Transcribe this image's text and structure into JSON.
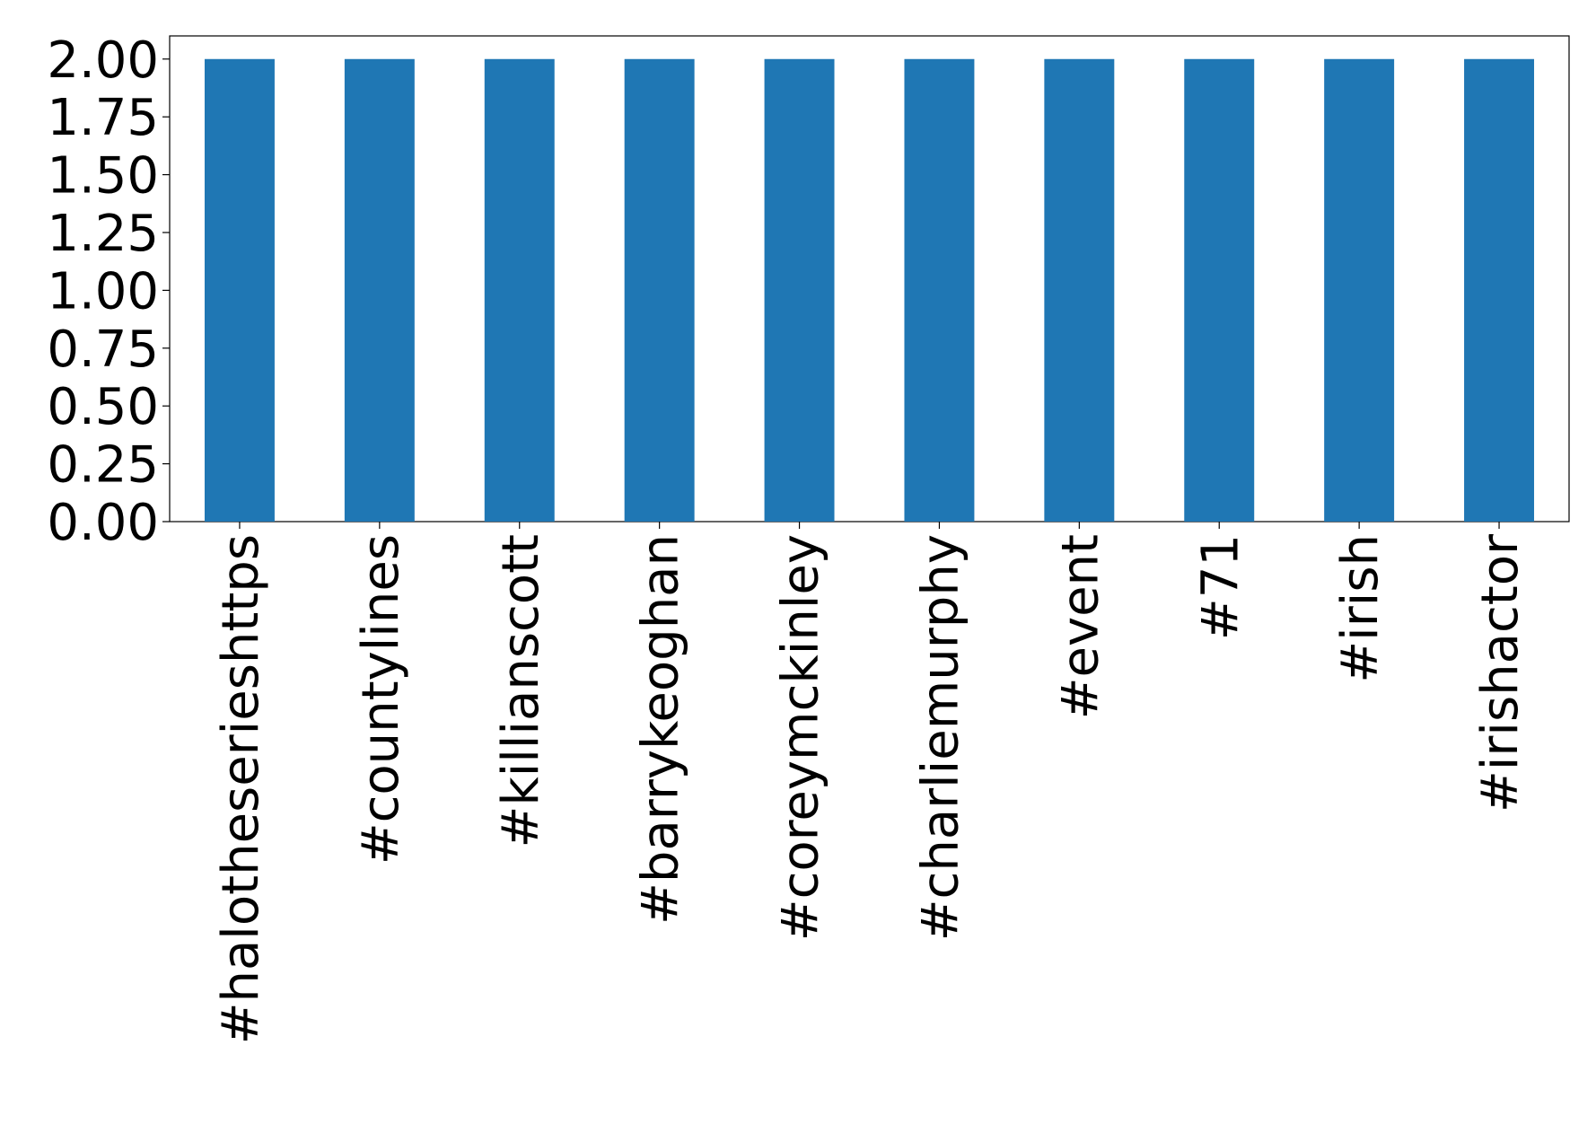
{
  "chart_data": {
    "type": "bar",
    "categories": [
      "#halotheserieshttps",
      "#countylines",
      "#killianscott",
      "#barrykeoghan",
      "#coreymckinley",
      "#charliemurphy",
      "#event",
      "#71",
      "#irish",
      "#irishactor"
    ],
    "values": [
      2,
      2,
      2,
      2,
      2,
      2,
      2,
      2,
      2,
      2
    ],
    "color": "#1f77b4",
    "ylim": [
      0,
      2.1
    ],
    "yticks": [
      {
        "value": 0,
        "label": "0.00"
      },
      0.25,
      {
        "value": 0.5,
        "label": "0.50"
      },
      0.75,
      {
        "value": 1,
        "label": "1.00"
      },
      1.25,
      {
        "value": 1.5,
        "label": "1.50"
      },
      1.75,
      {
        "value": 2,
        "label": "2.00"
      }
    ],
    "grid": false
  }
}
